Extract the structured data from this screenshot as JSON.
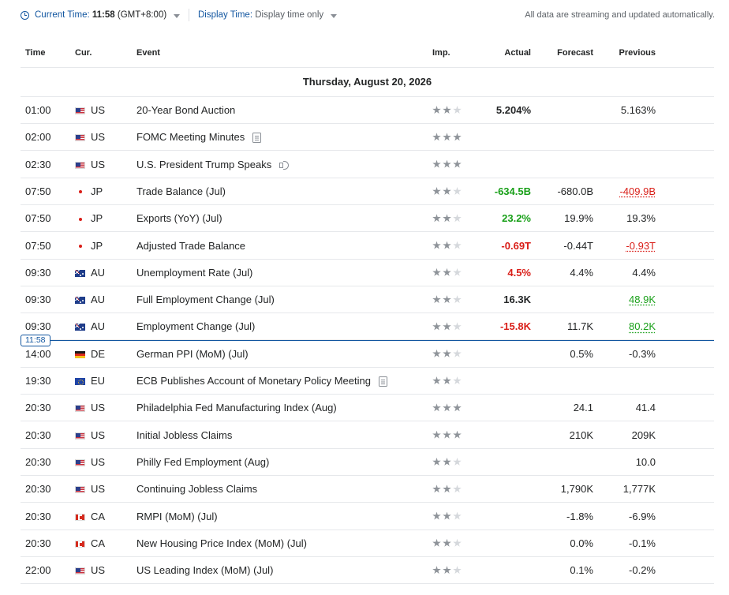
{
  "topbar": {
    "current_time_label": "Current Time:",
    "current_time_value": "11:58",
    "timezone": "(GMT+8:00)",
    "display_time_label": "Display Time:",
    "display_time_value": "Display time only",
    "streaming_note": "All data are streaming and updated automatically."
  },
  "columns": {
    "time": "Time",
    "cur": "Cur.",
    "event": "Event",
    "imp": "Imp.",
    "actual": "Actual",
    "forecast": "Forecast",
    "previous": "Previous"
  },
  "date_header": "Thursday, August 20, 2026",
  "current_time_marker": "11:58",
  "events": [
    {
      "time": "01:00",
      "flag": "us",
      "cur": "US",
      "event": "20-Year Bond Auction",
      "icon": "",
      "imp": 2,
      "actual": "5.204%",
      "actual_color": "neutral",
      "forecast": "",
      "previous": "5.163%",
      "previous_color": "neutral"
    },
    {
      "time": "02:00",
      "flag": "us",
      "cur": "US",
      "event": "FOMC Meeting Minutes",
      "icon": "document-icon",
      "imp": 3,
      "actual": "",
      "actual_color": "neutral",
      "forecast": "",
      "previous": "",
      "previous_color": "neutral"
    },
    {
      "time": "02:30",
      "flag": "us",
      "cur": "US",
      "event": "U.S. President Trump Speaks",
      "icon": "speaker-icon",
      "imp": 3,
      "actual": "",
      "actual_color": "neutral",
      "forecast": "",
      "previous": "",
      "previous_color": "neutral"
    },
    {
      "time": "07:50",
      "flag": "jp",
      "cur": "JP",
      "event": "Trade Balance  (Jul)",
      "icon": "",
      "imp": 2,
      "actual": "-634.5B",
      "actual_color": "green",
      "forecast": "-680.0B",
      "previous": "-409.9B",
      "previous_color": "red"
    },
    {
      "time": "07:50",
      "flag": "jp",
      "cur": "JP",
      "event": "Exports (YoY)  (Jul)",
      "icon": "",
      "imp": 2,
      "actual": "23.2%",
      "actual_color": "green",
      "forecast": "19.9%",
      "previous": "19.3%",
      "previous_color": "neutral"
    },
    {
      "time": "07:50",
      "flag": "jp",
      "cur": "JP",
      "event": "Adjusted Trade Balance",
      "icon": "",
      "imp": 2,
      "actual": "-0.69T",
      "actual_color": "red",
      "forecast": "-0.44T",
      "previous": "-0.93T",
      "previous_color": "red"
    },
    {
      "time": "09:30",
      "flag": "au",
      "cur": "AU",
      "event": "Unemployment Rate  (Jul)",
      "icon": "",
      "imp": 2,
      "actual": "4.5%",
      "actual_color": "red",
      "forecast": "4.4%",
      "previous": "4.4%",
      "previous_color": "neutral"
    },
    {
      "time": "09:30",
      "flag": "au",
      "cur": "AU",
      "event": "Full Employment Change  (Jul)",
      "icon": "",
      "imp": 2,
      "actual": "16.3K",
      "actual_color": "neutral",
      "forecast": "",
      "previous": "48.9K",
      "previous_color": "green"
    },
    {
      "time": "09:30",
      "flag": "au",
      "cur": "AU",
      "event": "Employment Change  (Jul)",
      "icon": "",
      "imp": 2,
      "actual": "-15.8K",
      "actual_color": "red",
      "forecast": "11.7K",
      "previous": "80.2K",
      "previous_color": "green"
    },
    {
      "time": "14:00",
      "flag": "de",
      "cur": "DE",
      "event": "German PPI (MoM) (Jul)",
      "icon": "",
      "imp": 2,
      "actual": "",
      "actual_color": "neutral",
      "forecast": "0.5%",
      "previous": "-0.3%",
      "previous_color": "neutral"
    },
    {
      "time": "19:30",
      "flag": "eu",
      "cur": "EU",
      "event": "ECB Publishes Account of Monetary Policy Meeting",
      "icon": "document-icon",
      "imp": 2,
      "actual": "",
      "actual_color": "neutral",
      "forecast": "",
      "previous": "",
      "previous_color": "neutral"
    },
    {
      "time": "20:30",
      "flag": "us",
      "cur": "US",
      "event": "Philadelphia Fed Manufacturing Index  (Aug)",
      "icon": "",
      "imp": 3,
      "actual": "",
      "actual_color": "neutral",
      "forecast": "24.1",
      "previous": "41.4",
      "previous_color": "neutral"
    },
    {
      "time": "20:30",
      "flag": "us",
      "cur": "US",
      "event": "Initial Jobless Claims",
      "icon": "",
      "imp": 3,
      "actual": "",
      "actual_color": "neutral",
      "forecast": "210K",
      "previous": "209K",
      "previous_color": "neutral"
    },
    {
      "time": "20:30",
      "flag": "us",
      "cur": "US",
      "event": "Philly Fed Employment  (Aug)",
      "icon": "",
      "imp": 2,
      "actual": "",
      "actual_color": "neutral",
      "forecast": "",
      "previous": "10.0",
      "previous_color": "neutral"
    },
    {
      "time": "20:30",
      "flag": "us",
      "cur": "US",
      "event": "Continuing Jobless Claims",
      "icon": "",
      "imp": 2,
      "actual": "",
      "actual_color": "neutral",
      "forecast": "1,790K",
      "previous": "1,777K",
      "previous_color": "neutral"
    },
    {
      "time": "20:30",
      "flag": "ca",
      "cur": "CA",
      "event": "RMPI (MoM) (Jul)",
      "icon": "",
      "imp": 2,
      "actual": "",
      "actual_color": "neutral",
      "forecast": "-1.8%",
      "previous": "-6.9%",
      "previous_color": "neutral"
    },
    {
      "time": "20:30",
      "flag": "ca",
      "cur": "CA",
      "event": "New Housing Price Index (MoM) (Jul)",
      "icon": "",
      "imp": 2,
      "actual": "",
      "actual_color": "neutral",
      "forecast": "0.0%",
      "previous": "-0.1%",
      "previous_color": "neutral"
    },
    {
      "time": "22:00",
      "flag": "us",
      "cur": "US",
      "event": "US Leading Index (MoM) (Jul)",
      "icon": "",
      "imp": 2,
      "actual": "",
      "actual_color": "neutral",
      "forecast": "0.1%",
      "previous": "-0.2%",
      "previous_color": "neutral"
    }
  ]
}
